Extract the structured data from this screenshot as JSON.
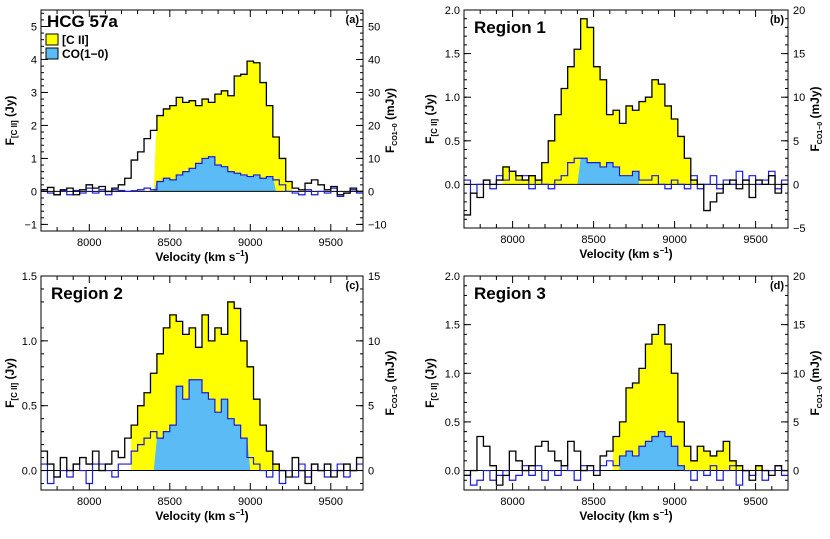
{
  "figure": {
    "axis_tick_label": "s"
  },
  "chart_data": [
    {
      "type": "area",
      "panel_label": "(a)",
      "title": "HCG 57a",
      "xlabel": "Velocity (km s",
      "xlabel_sup": "−1",
      "xlabel_close": ")",
      "ylabel_left_main": "F",
      "ylabel_left_sub": "[C II]",
      "ylabel_left_unit": "(Jy)",
      "ylabel_right_main": "F",
      "ylabel_right_sub": "CO1−0",
      "ylabel_right_unit": "(mJy)",
      "xlim": [
        7700,
        9700
      ],
      "ylim_left": [
        -1.2,
        5.5
      ],
      "ylim_right": [
        -12,
        55
      ],
      "xticks": [
        8000,
        8500,
        9000,
        9500
      ],
      "yticks_left": [
        -1,
        0,
        1,
        2,
        3,
        4,
        5
      ],
      "yticks_right": [
        -10,
        0,
        10,
        20,
        30,
        40,
        50
      ],
      "legend": [
        {
          "label": "[C II]",
          "color": "#ffff00"
        },
        {
          "label": "CO(1−0)",
          "color": "#5bbcf5"
        }
      ],
      "cii": {
        "x0": 7700,
        "dx": 40,
        "values": [
          0.05,
          0.12,
          -0.1,
          0.05,
          0.1,
          -0.1,
          0.05,
          0.2,
          0.1,
          0.15,
          0.0,
          0.1,
          0.2,
          0.4,
          0.95,
          1.2,
          1.6,
          1.85,
          2.3,
          2.5,
          2.6,
          2.85,
          2.7,
          2.75,
          2.6,
          2.8,
          2.7,
          2.95,
          3.05,
          2.9,
          3.5,
          3.55,
          3.95,
          3.9,
          3.3,
          2.6,
          1.65,
          1.0,
          0.3,
          0.1,
          0.05,
          0.25,
          0.35,
          0.2,
          0.05,
          0.15,
          -0.1,
          -0.05,
          0.1,
          0.0
        ]
      },
      "co": {
        "x0": 7700,
        "dx": 40,
        "values": [
          0.5,
          -0.5,
          -1.0,
          0.2,
          -1.0,
          0.3,
          -0.5,
          1.0,
          -0.5,
          0.5,
          -1.0,
          0.5,
          0.3,
          0.0,
          0.2,
          0.5,
          1.0,
          0.5,
          3.0,
          4.0,
          3.5,
          5.0,
          6.0,
          7.0,
          8.5,
          10.0,
          10.5,
          8.0,
          7.5,
          6.0,
          5.5,
          5.0,
          4.5,
          5.0,
          4.0,
          4.5,
          3.5,
          2.0,
          0.0,
          -0.5,
          -1.0,
          0.5,
          -1.0,
          0.0,
          -0.5,
          1.0,
          -1.5,
          -0.5,
          0.5,
          -0.5
        ]
      },
      "cii_fill_range": [
        8400,
        9260
      ],
      "co_fill_range": [
        8400,
        9160
      ]
    },
    {
      "type": "area",
      "panel_label": "(b)",
      "title": "Region 1",
      "xlabel": "Velocity (km s",
      "xlabel_sup": "−1",
      "xlabel_close": ")",
      "ylabel_left_main": "F",
      "ylabel_left_sub": "[C II]",
      "ylabel_left_unit": "(Jy)",
      "ylabel_right_main": "F",
      "ylabel_right_sub": "CO1−0",
      "ylabel_right_unit": "(mJy)",
      "xlim": [
        7700,
        9700
      ],
      "ylim_left": [
        -0.5,
        2.0
      ],
      "ylim_right": [
        -5,
        20
      ],
      "xticks": [
        8000,
        8500,
        9000,
        9500
      ],
      "yticks_left": [
        0.0,
        0.5,
        1.0,
        1.5,
        2.0
      ],
      "yticks_right": [
        -5,
        0,
        5,
        10,
        15,
        20
      ],
      "legend": [],
      "cii": {
        "x0": 7700,
        "dx": 40,
        "values": [
          -0.35,
          -0.1,
          -0.15,
          0.05,
          0.0,
          0.05,
          0.2,
          0.15,
          0.1,
          0.05,
          0.1,
          0.05,
          0.25,
          0.5,
          0.8,
          1.1,
          1.35,
          1.55,
          1.9,
          1.8,
          1.35,
          1.2,
          0.8,
          0.85,
          0.7,
          0.9,
          0.85,
          0.95,
          1.0,
          1.2,
          1.15,
          0.9,
          0.75,
          0.55,
          0.3,
          0.05,
          0.0,
          -0.3,
          -0.2,
          -0.1,
          0.0,
          0.05,
          -0.05,
          0.05,
          -0.15,
          0.05,
          0.0,
          0.1,
          -0.1,
          0.0
        ]
      },
      "co": {
        "x0": 7700,
        "dx": 40,
        "values": [
          0.5,
          -1.0,
          0.0,
          0.5,
          -0.5,
          1.0,
          0.5,
          1.5,
          0.5,
          1.0,
          -0.5,
          0.5,
          0.0,
          -0.5,
          0.5,
          1.0,
          2.5,
          3.0,
          3.0,
          2.5,
          2.5,
          2.0,
          2.5,
          2.0,
          1.0,
          1.0,
          1.5,
          0.5,
          0.5,
          1.0,
          0.0,
          -0.5,
          0.5,
          0.0,
          -0.5,
          1.0,
          -0.5,
          0.0,
          1.0,
          -0.5,
          0.5,
          0.0,
          1.5,
          0.5,
          1.0,
          0.0,
          0.5,
          1.5,
          -0.5,
          0.5
        ]
      },
      "cii_fill_range": [
        7940,
        9260
      ],
      "co_fill_range": [
        8400,
        8780
      ]
    },
    {
      "type": "area",
      "panel_label": "(c)",
      "title": "Region 2",
      "xlabel": "Velocity (km s",
      "xlabel_sup": "−1",
      "xlabel_close": ")",
      "ylabel_left_main": "F",
      "ylabel_left_sub": "[C II]",
      "ylabel_left_unit": "(Jy)",
      "ylabel_right_main": "F",
      "ylabel_right_sub": "CO1−0",
      "ylabel_right_unit": "(mJy)",
      "xlim": [
        7700,
        9700
      ],
      "ylim_left": [
        -0.15,
        1.5
      ],
      "ylim_right": [
        -1.5,
        15
      ],
      "xticks": [
        8000,
        8500,
        9000,
        9500
      ],
      "yticks_left": [
        0.0,
        0.5,
        1.0,
        1.5
      ],
      "yticks_right": [
        0,
        5,
        10,
        15
      ],
      "legend": [],
      "cii": {
        "x0": 7700,
        "dx": 40,
        "values": [
          0.15,
          0.05,
          -0.05,
          0.1,
          0.0,
          0.05,
          0.1,
          0.05,
          0.15,
          0.0,
          0.05,
          0.15,
          0.1,
          0.25,
          0.35,
          0.5,
          0.6,
          0.75,
          0.9,
          1.1,
          1.2,
          1.15,
          1.05,
          1.1,
          0.95,
          1.2,
          1.0,
          1.1,
          1.05,
          1.3,
          1.25,
          1.0,
          0.8,
          0.55,
          0.35,
          0.15,
          0.05,
          0.0,
          -0.05,
          0.1,
          0.0,
          -0.1,
          0.05,
          0.0,
          0.05,
          -0.05,
          0.0,
          0.05,
          0.0,
          0.1
        ]
      },
      "co": {
        "x0": 7700,
        "dx": 40,
        "values": [
          0.5,
          -1.0,
          -0.5,
          0.0,
          -0.5,
          0.5,
          0.0,
          -1.0,
          0.5,
          0.5,
          0.0,
          -0.5,
          0.5,
          0.5,
          1.5,
          2.0,
          2.5,
          3.0,
          2.5,
          3.0,
          3.5,
          6.5,
          5.5,
          7.0,
          7.0,
          6.0,
          5.5,
          4.5,
          5.5,
          4.0,
          3.5,
          2.5,
          1.0,
          0.5,
          0.0,
          -0.5,
          0.5,
          -1.0,
          0.0,
          -0.5,
          0.5,
          -0.5,
          0.5,
          0.0,
          -0.5,
          0.0,
          0.5,
          -0.5,
          0.0,
          0.5
        ]
      },
      "cii_fill_range": [
        8260,
        9260
      ],
      "co_fill_range": [
        8400,
        9000
      ]
    },
    {
      "type": "area",
      "panel_label": "(d)",
      "title": "Region 3",
      "xlabel": "Velocity (km s",
      "xlabel_sup": "−1",
      "xlabel_close": ")",
      "ylabel_left_main": "F",
      "ylabel_left_sub": "[C II]",
      "ylabel_left_unit": "(Jy)",
      "ylabel_right_main": "F",
      "ylabel_right_sub": "CO1−0",
      "ylabel_right_unit": "(mJy)",
      "xlim": [
        7700,
        9700
      ],
      "ylim_left": [
        -0.2,
        2.0
      ],
      "ylim_right": [
        -2,
        20
      ],
      "xticks": [
        8000,
        8500,
        9000,
        9500
      ],
      "yticks_left": [
        0.0,
        0.5,
        1.0,
        1.5,
        2.0
      ],
      "yticks_right": [
        0,
        5,
        10,
        15,
        20
      ],
      "legend": [],
      "cii": {
        "x0": 7700,
        "dx": 40,
        "values": [
          -0.05,
          0.0,
          0.35,
          0.25,
          0.05,
          -0.15,
          -0.05,
          0.2,
          0.1,
          0.0,
          0.05,
          0.25,
          0.3,
          0.2,
          0.1,
          0.05,
          0.3,
          0.2,
          0.0,
          0.05,
          -0.05,
          0.15,
          0.2,
          0.35,
          0.5,
          0.85,
          0.9,
          1.05,
          1.3,
          1.4,
          1.5,
          1.3,
          1.0,
          0.5,
          0.25,
          0.1,
          0.25,
          0.2,
          0.15,
          0.2,
          0.3,
          0.1,
          0.05,
          0.0,
          -0.1,
          0.05,
          0.0,
          -0.05,
          0.05,
          0.0
        ]
      },
      "co": {
        "x0": 7700,
        "dx": 40,
        "values": [
          -0.5,
          -1.5,
          -1.0,
          0.0,
          -1.0,
          -0.5,
          0.0,
          -1.0,
          -0.5,
          0.5,
          -0.5,
          0.5,
          -1.0,
          0.0,
          -0.5,
          0.5,
          0.0,
          -1.0,
          0.5,
          0.0,
          0.0,
          0.5,
          1.0,
          0.5,
          1.5,
          2.0,
          1.5,
          2.5,
          3.0,
          3.5,
          4.0,
          3.5,
          2.5,
          0.5,
          0.0,
          -1.0,
          0.0,
          -0.5,
          0.5,
          -1.0,
          0.0,
          0.5,
          -1.5,
          0.0,
          -0.5,
          0.5,
          -1.0,
          0.0,
          0.5,
          -0.5
        ]
      },
      "cii_fill_range": [
        8620,
        9540
      ],
      "co_fill_range": [
        8660,
        9100
      ]
    }
  ]
}
